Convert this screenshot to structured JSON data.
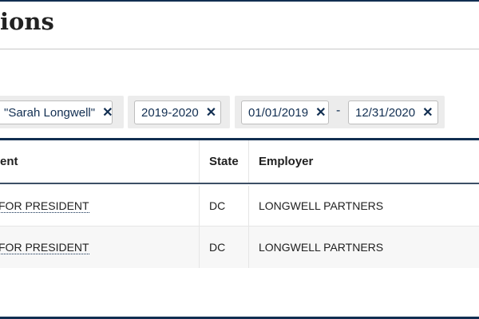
{
  "page": {
    "title": "ions"
  },
  "filters": {
    "contributor": "\"Sarah Longwell\"",
    "period": "2019-2020",
    "date_start": "01/01/2019",
    "date_separator": "-",
    "date_end": "12/31/2020",
    "remove_icon": "✕"
  },
  "table": {
    "headers": [
      "ent",
      "State",
      "Employer"
    ],
    "rows": [
      {
        "recipient": "FOR PRESIDENT",
        "state": "DC",
        "employer": "LONGWELL PARTNERS"
      },
      {
        "recipient": "FOR PRESIDENT",
        "state": "DC",
        "employer": "LONGWELL PARTNERS"
      }
    ]
  },
  "colors": {
    "accent": "#112e51"
  }
}
